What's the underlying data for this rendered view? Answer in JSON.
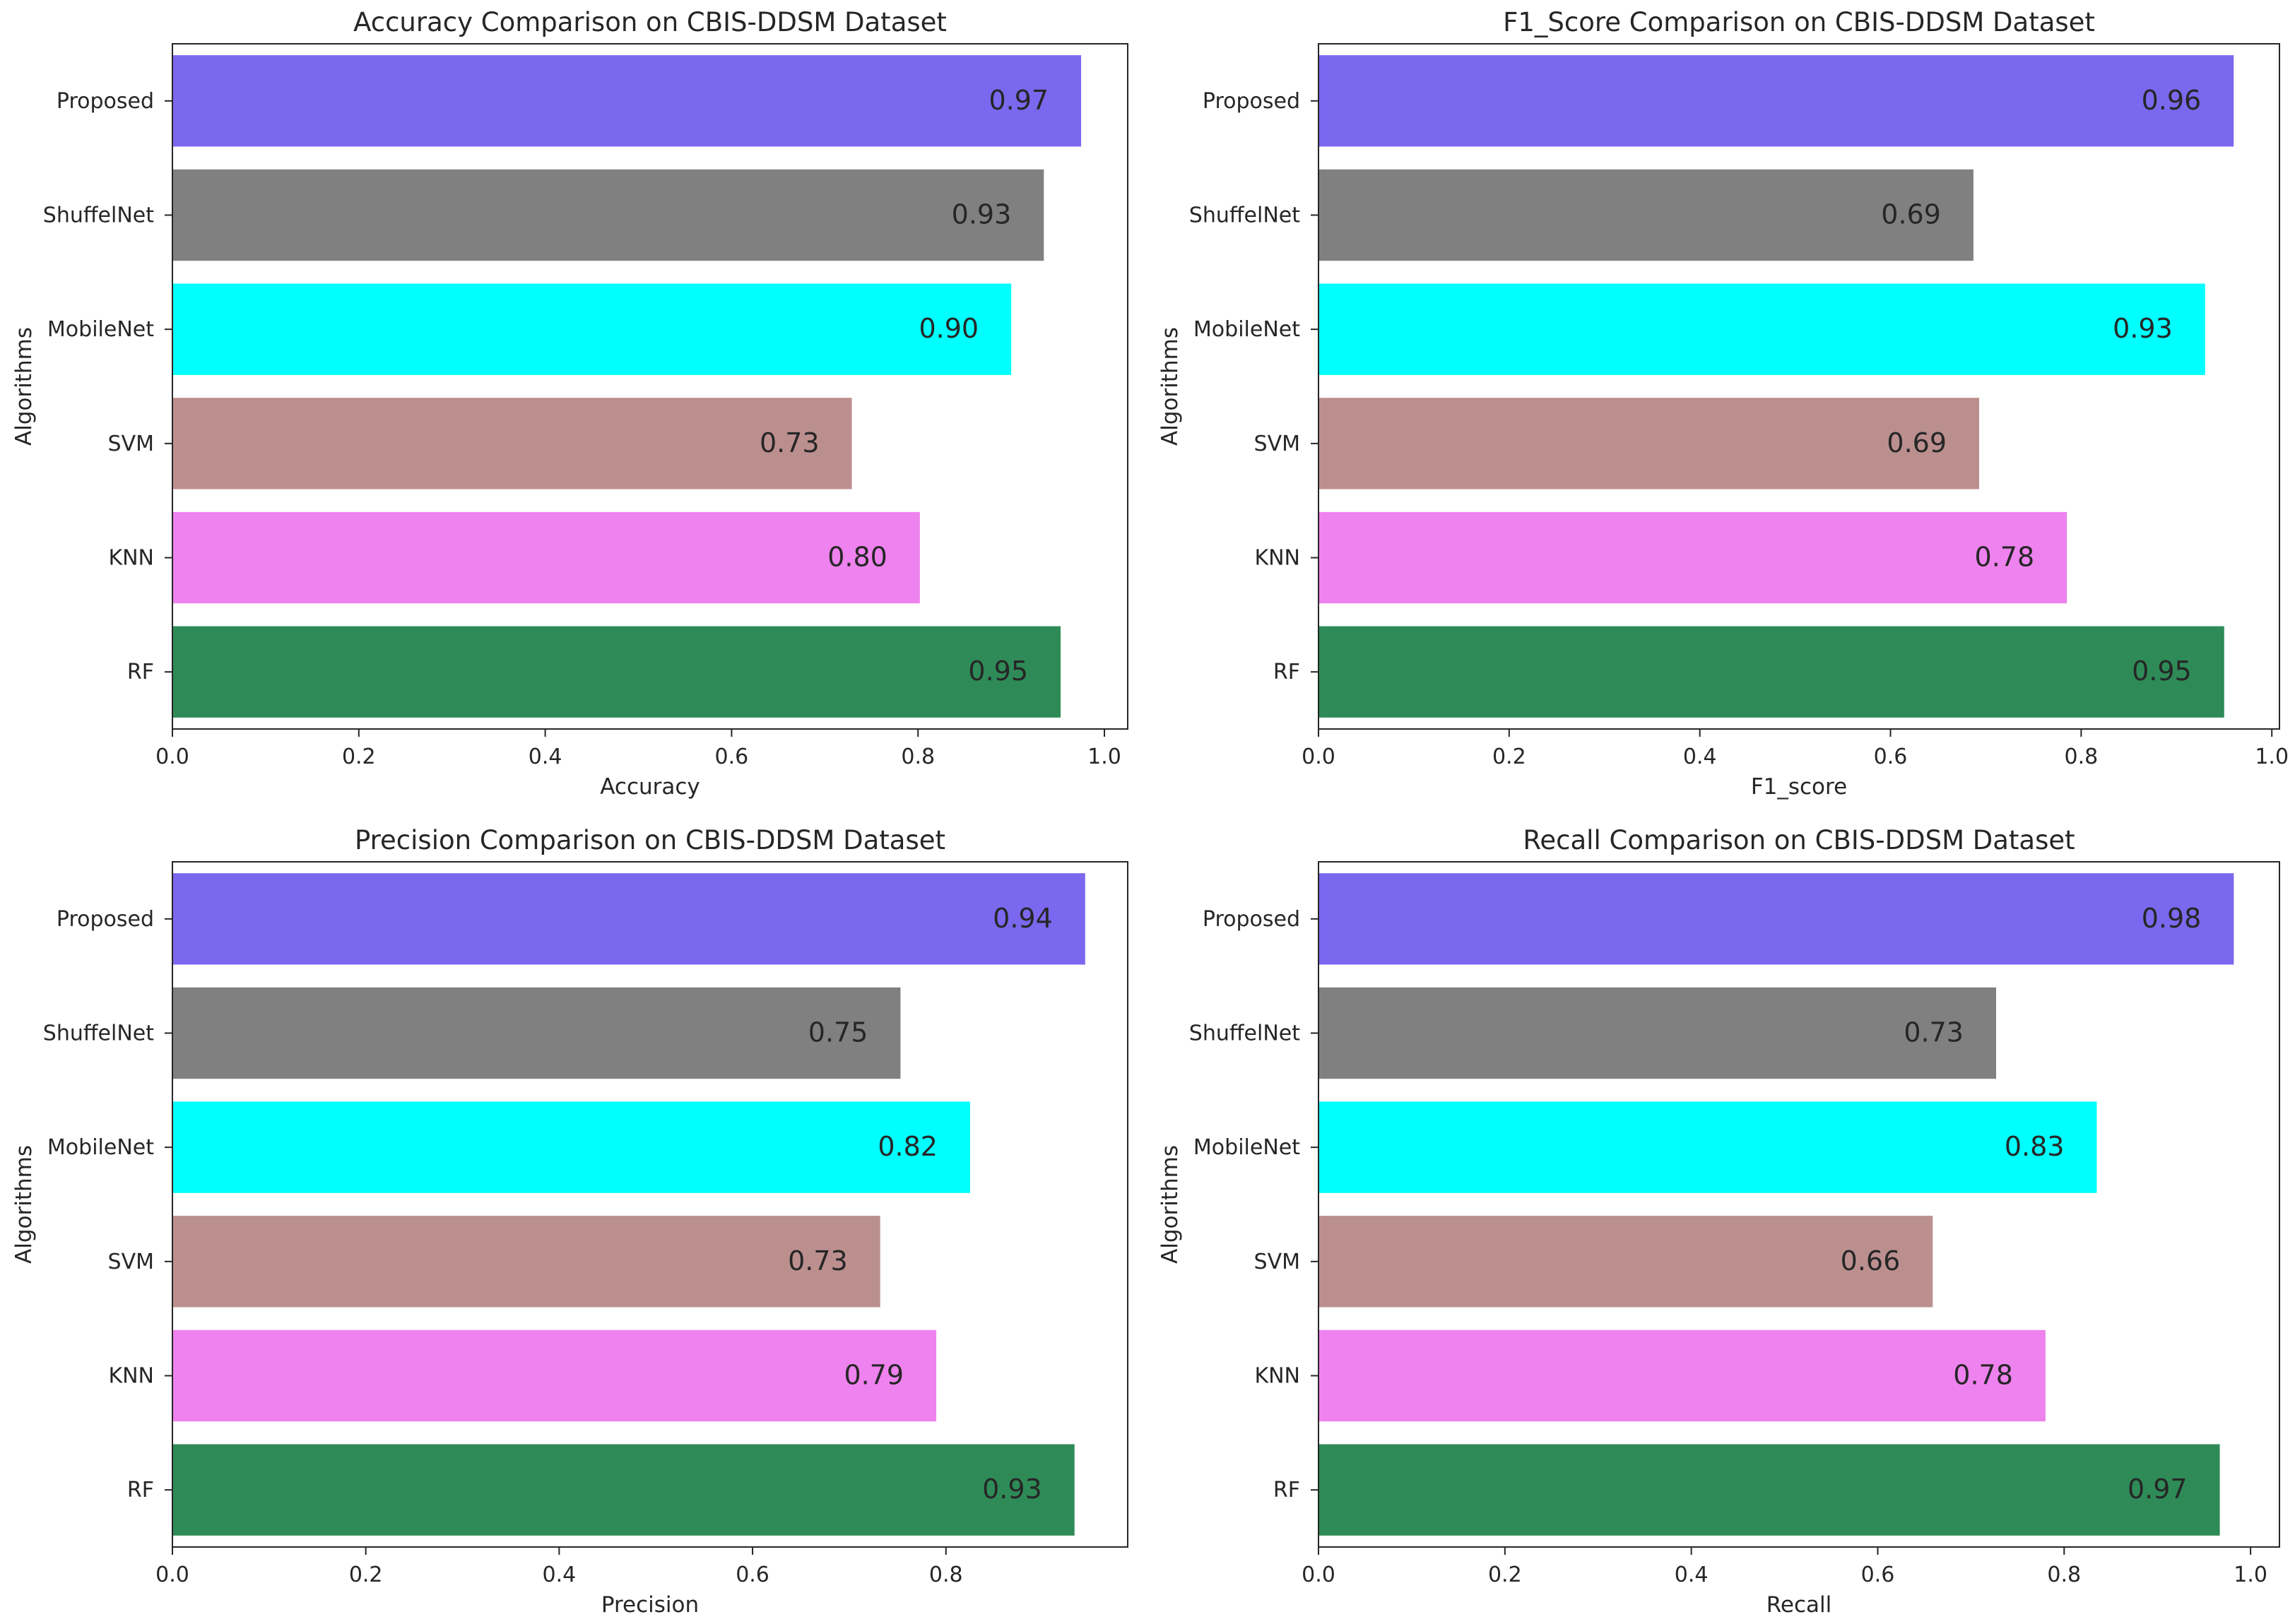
{
  "chart_data": [
    {
      "type": "bar",
      "orientation": "horizontal",
      "title": "Accuracy Comparison on CBIS-DDSM Dataset",
      "xlabel": "Accuracy",
      "ylabel": "Algorithms",
      "categories": [
        "Proposed",
        "ShuffelNet",
        "MobileNet",
        "SVM",
        "KNN",
        "RF"
      ],
      "values": [
        0.975,
        0.935,
        0.9,
        0.729,
        0.802,
        0.953
      ],
      "value_labels": [
        "0.97",
        "0.93",
        "0.90",
        "0.73",
        "0.80",
        "0.95"
      ],
      "colors": [
        "#7b68ee",
        "#808080",
        "#00ffff",
        "#bc8f8f",
        "#ee82ee",
        "#2e8b57"
      ],
      "xlim": [
        0,
        1.025
      ],
      "xticks": [
        0.0,
        0.2,
        0.4,
        0.6,
        0.8,
        1.0
      ],
      "xtick_labels": [
        "0.0",
        "0.2",
        "0.4",
        "0.6",
        "0.8",
        "1.0"
      ],
      "grid": false
    },
    {
      "type": "bar",
      "orientation": "horizontal",
      "title": "F1_Score Comparison on CBIS-DDSM Dataset",
      "xlabel": "F1_score",
      "ylabel": "Algorithms",
      "categories": [
        "Proposed",
        "ShuffelNet",
        "MobileNet",
        "SVM",
        "KNN",
        "RF"
      ],
      "values": [
        0.96,
        0.687,
        0.93,
        0.693,
        0.785,
        0.95
      ],
      "value_labels": [
        "0.96",
        "0.69",
        "0.93",
        "0.69",
        "0.78",
        "0.95"
      ],
      "colors": [
        "#7b68ee",
        "#808080",
        "#00ffff",
        "#bc8f8f",
        "#ee82ee",
        "#2e8b57"
      ],
      "xlim": [
        0,
        1.008
      ],
      "xticks": [
        0.0,
        0.2,
        0.4,
        0.6,
        0.8,
        1.0
      ],
      "xtick_labels": [
        "0.0",
        "0.2",
        "0.4",
        "0.6",
        "0.8",
        "1.0"
      ],
      "grid": false
    },
    {
      "type": "bar",
      "orientation": "horizontal",
      "title": "Precision Comparison on CBIS-DDSM Dataset",
      "xlabel": "Precision",
      "ylabel": "Algorithms",
      "categories": [
        "Proposed",
        "ShuffelNet",
        "MobileNet",
        "SVM",
        "KNN",
        "RF"
      ],
      "values": [
        0.944,
        0.753,
        0.825,
        0.732,
        0.79,
        0.933
      ],
      "value_labels": [
        "0.94",
        "0.75",
        "0.82",
        "0.73",
        "0.79",
        "0.93"
      ],
      "colors": [
        "#7b68ee",
        "#808080",
        "#00ffff",
        "#bc8f8f",
        "#ee82ee",
        "#2e8b57"
      ],
      "xlim": [
        0,
        0.988
      ],
      "xticks": [
        0.0,
        0.2,
        0.4,
        0.6,
        0.8
      ],
      "xtick_labels": [
        "0.0",
        "0.2",
        "0.4",
        "0.6",
        "0.8"
      ],
      "grid": false
    },
    {
      "type": "bar",
      "orientation": "horizontal",
      "title": "Recall Comparison on CBIS-DDSM Dataset",
      "xlabel": "Recall",
      "ylabel": "Algorithms",
      "categories": [
        "Proposed",
        "ShuffelNet",
        "MobileNet",
        "SVM",
        "KNN",
        "RF"
      ],
      "values": [
        0.982,
        0.727,
        0.835,
        0.659,
        0.78,
        0.967
      ],
      "value_labels": [
        "0.98",
        "0.73",
        "0.83",
        "0.66",
        "0.78",
        "0.97"
      ],
      "colors": [
        "#7b68ee",
        "#808080",
        "#00ffff",
        "#bc8f8f",
        "#ee82ee",
        "#2e8b57"
      ],
      "xlim": [
        0,
        1.031
      ],
      "xticks": [
        0.0,
        0.2,
        0.4,
        0.6,
        0.8,
        1.0
      ],
      "xtick_labels": [
        "0.0",
        "0.2",
        "0.4",
        "0.6",
        "0.8",
        "1.0"
      ],
      "grid": false
    }
  ]
}
